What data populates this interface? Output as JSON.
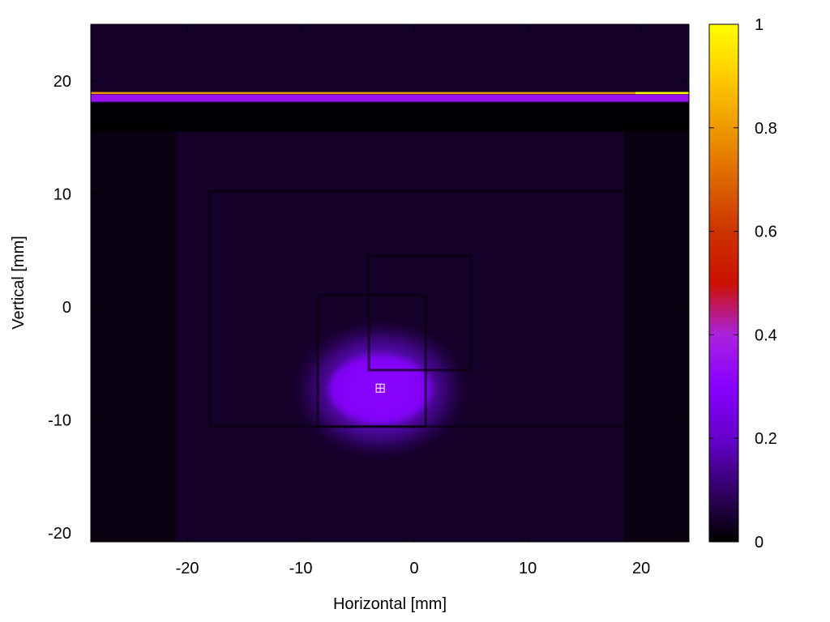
{
  "chart_data": {
    "type": "heatmap",
    "title": "",
    "xlabel": "Horizontal [mm]",
    "ylabel": "Vertical [mm]",
    "xlim": [
      -28.5,
      24.2
    ],
    "ylim": [
      -20.8,
      25.0
    ],
    "x_ticks": [
      -20,
      -10,
      0,
      10,
      20
    ],
    "y_ticks": [
      -20,
      -10,
      0,
      10,
      20
    ],
    "colorbar": {
      "range": [
        0,
        1
      ],
      "ticks": [
        0,
        0.2,
        0.4,
        0.6,
        0.8,
        1
      ],
      "tick_labels": [
        "0",
        "0.2",
        "0.4",
        "0.6",
        "0.8",
        "1"
      ],
      "stops": [
        {
          "value": 0.0,
          "color": "#000000"
        },
        {
          "value": 0.1,
          "color": "#330066"
        },
        {
          "value": 0.2,
          "color": "#6600cc"
        },
        {
          "value": 0.3,
          "color": "#8800ff"
        },
        {
          "value": 0.4,
          "color": "#aa22dd"
        },
        {
          "value": 0.5,
          "color": "#cc1100"
        },
        {
          "value": 0.6,
          "color": "#cc3300"
        },
        {
          "value": 0.7,
          "color": "#dd6600"
        },
        {
          "value": 0.8,
          "color": "#ee9900"
        },
        {
          "value": 0.9,
          "color": "#ffcc00"
        },
        {
          "value": 1.0,
          "color": "#ffff00"
        }
      ]
    },
    "background_level": 0.04,
    "features": [
      {
        "kind": "horizontal_band",
        "y": 18.5,
        "x_from": -28.5,
        "x_to": 24.2,
        "level": 0.35
      },
      {
        "kind": "horizontal_line",
        "y": 18.9,
        "x_from": -28.5,
        "x_to": 24.2,
        "level": 0.8
      },
      {
        "kind": "horizontal_line",
        "y": 18.9,
        "x_from": 19.5,
        "x_to": 24.2,
        "level": 1.0
      },
      {
        "kind": "hot_spot",
        "x": -3.0,
        "y": -7.3,
        "sx": 5.0,
        "sy": 4.0,
        "level": 0.3
      },
      {
        "kind": "dark_region",
        "x_from": -28.5,
        "x_to": -21.0,
        "y_from": -20.8,
        "y_to": 16.0
      },
      {
        "kind": "dark_region",
        "x_from": 18.5,
        "x_to": 24.2,
        "y_from": -20.8,
        "y_to": 16.0
      },
      {
        "kind": "dark_band",
        "y_from": 15.5,
        "y_to": 18.0
      },
      {
        "kind": "frame_square",
        "x_from": -4.0,
        "x_to": 5.0,
        "y_from": -5.6,
        "y_to": 4.5
      },
      {
        "kind": "frame_square",
        "x_from": -8.5,
        "x_to": 1.0,
        "y_from": -10.6,
        "y_to": 1.0
      },
      {
        "kind": "frame_square",
        "x_from": -18.0,
        "x_to": 19.0,
        "y_from": -10.6,
        "y_to": 10.2
      }
    ],
    "marker": {
      "x": -3.0,
      "y": -7.2,
      "symbol": "boxed-plus"
    }
  }
}
